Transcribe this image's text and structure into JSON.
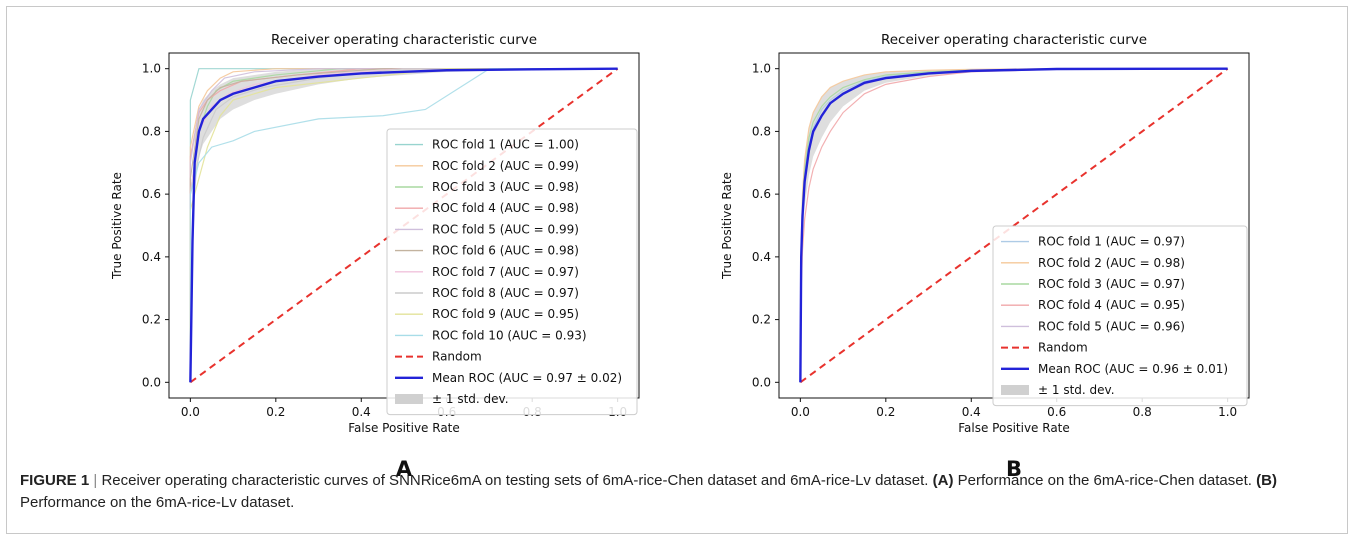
{
  "panels": [
    {
      "letter": "A"
    },
    {
      "letter": "B"
    }
  ],
  "caption": {
    "figure_label": "FIGURE 1",
    "separator": "|",
    "text1": "Receiver operating characteristic curves of SNNRice6mA on testing sets of 6mA-rice-Chen dataset and 6mA-rice-Lv dataset.",
    "label_a": "(A)",
    "text2": "Performance on the 6mA-rice-Chen dataset.",
    "label_b": "(B)",
    "text3": "Performance on the 6mA-rice-Lv dataset."
  },
  "chart_data": [
    {
      "type": "line",
      "title": "Receiver operating characteristic curve",
      "xlabel": "False Positive Rate",
      "ylabel": "True Positive Rate",
      "xlim": [
        -0.05,
        1.05
      ],
      "ylim": [
        -0.05,
        1.05
      ],
      "xticks": [
        "0.0",
        "0.2",
        "0.4",
        "0.6",
        "0.8",
        "1.0"
      ],
      "yticks": [
        "0.0",
        "0.2",
        "0.4",
        "0.6",
        "0.8",
        "1.0"
      ],
      "grid": false,
      "legend_position": "lower-right",
      "series": [
        {
          "name": "ROC fold 1 (AUC = 1.00)",
          "color": "#98d4cf",
          "x": [
            0,
            0,
            0.02,
            1
          ],
          "y": [
            0,
            0.9,
            1.0,
            1.0
          ]
        },
        {
          "name": "ROC fold 2 (AUC = 0.99)",
          "color": "#f5c89a",
          "x": [
            0,
            0,
            0.02,
            0.04,
            0.07,
            0.1,
            0.2,
            1
          ],
          "y": [
            0,
            0.75,
            0.88,
            0.93,
            0.97,
            0.99,
            1.0,
            1.0
          ]
        },
        {
          "name": "ROC fold 3 (AUC = 0.98)",
          "color": "#a9d9a0",
          "x": [
            0,
            0,
            0.02,
            0.04,
            0.06,
            0.1,
            0.2,
            0.35,
            1
          ],
          "y": [
            0,
            0.6,
            0.8,
            0.88,
            0.93,
            0.96,
            0.98,
            1.0,
            1.0
          ]
        },
        {
          "name": "ROC fold 4 (AUC = 0.98)",
          "color": "#f1a7aa",
          "x": [
            0,
            0,
            0.02,
            0.04,
            0.07,
            0.12,
            0.25,
            0.4,
            1
          ],
          "y": [
            0,
            0.72,
            0.86,
            0.9,
            0.93,
            0.96,
            0.98,
            1.0,
            1.0
          ]
        },
        {
          "name": "ROC fold 5 (AUC = 0.99)",
          "color": "#cfbfdc",
          "x": [
            0,
            0,
            0.02,
            0.05,
            0.08,
            0.15,
            0.3,
            1
          ],
          "y": [
            0,
            0.7,
            0.87,
            0.93,
            0.97,
            0.99,
            1.0,
            1.0
          ]
        },
        {
          "name": "ROC fold 6 (AUC = 0.98)",
          "color": "#c3b39f",
          "x": [
            0,
            0,
            0.02,
            0.04,
            0.07,
            0.12,
            0.25,
            0.45,
            1
          ],
          "y": [
            0,
            0.65,
            0.84,
            0.9,
            0.94,
            0.96,
            0.98,
            1.0,
            1.0
          ]
        },
        {
          "name": "ROC fold 7 (AUC = 0.97)",
          "color": "#f0c3dc",
          "x": [
            0,
            0,
            0.02,
            0.05,
            0.09,
            0.15,
            0.3,
            0.5,
            1
          ],
          "y": [
            0,
            0.6,
            0.8,
            0.88,
            0.92,
            0.95,
            0.98,
            1.0,
            1.0
          ]
        },
        {
          "name": "ROC fold 8 (AUC = 0.97)",
          "color": "#cccccc",
          "x": [
            0,
            0,
            0.03,
            0.06,
            0.1,
            0.17,
            0.3,
            0.5,
            1
          ],
          "y": [
            0,
            0.6,
            0.78,
            0.87,
            0.91,
            0.94,
            0.97,
            1.0,
            1.0
          ]
        },
        {
          "name": "ROC fold 9 (AUC = 0.95)",
          "color": "#e3e39a",
          "x": [
            0,
            0,
            0.02,
            0.04,
            0.07,
            0.1,
            0.2,
            0.4,
            0.6,
            1
          ],
          "y": [
            0,
            0.55,
            0.65,
            0.75,
            0.85,
            0.9,
            0.94,
            0.97,
            1.0,
            1.0
          ]
        },
        {
          "name": "ROC fold 10 (AUC = 0.93)",
          "color": "#a8dde8",
          "x": [
            0,
            0,
            0.02,
            0.05,
            0.1,
            0.15,
            0.3,
            0.45,
            0.55,
            0.7,
            1
          ],
          "y": [
            0,
            0.6,
            0.7,
            0.75,
            0.77,
            0.8,
            0.84,
            0.85,
            0.87,
            1.0,
            1.0
          ]
        }
      ],
      "random": {
        "name": "Random",
        "color": "#e8322d",
        "x": [
          0,
          1
        ],
        "y": [
          0,
          1
        ]
      },
      "mean": {
        "name": "Mean ROC (AUC = 0.97 ± 0.02)",
        "color": "#2323d8",
        "x": [
          0,
          0.005,
          0.01,
          0.02,
          0.03,
          0.05,
          0.07,
          0.1,
          0.15,
          0.2,
          0.3,
          0.4,
          0.5,
          0.6,
          0.8,
          1.0
        ],
        "y": [
          0,
          0.45,
          0.7,
          0.8,
          0.84,
          0.87,
          0.9,
          0.92,
          0.94,
          0.96,
          0.975,
          0.985,
          0.99,
          0.995,
          0.998,
          1.0
        ]
      },
      "std_band": {
        "name": "± 1 std. dev.",
        "color": "#d0d0d0",
        "x": [
          0,
          0.01,
          0.02,
          0.03,
          0.05,
          0.07,
          0.1,
          0.15,
          0.2,
          0.3,
          0.4,
          0.6,
          1.0
        ],
        "upper": [
          0,
          0.78,
          0.87,
          0.9,
          0.93,
          0.95,
          0.97,
          0.98,
          0.99,
          1.0,
          1.0,
          1.0,
          1.0
        ],
        "lower": [
          0,
          0.6,
          0.72,
          0.76,
          0.8,
          0.84,
          0.87,
          0.9,
          0.92,
          0.95,
          0.97,
          0.99,
          1.0
        ]
      }
    },
    {
      "type": "line",
      "title": "Receiver operating characteristic curve",
      "xlabel": "False Positive Rate",
      "ylabel": "True Positive Rate",
      "xlim": [
        -0.05,
        1.05
      ],
      "ylim": [
        -0.05,
        1.05
      ],
      "xticks": [
        "0.0",
        "0.2",
        "0.4",
        "0.6",
        "0.8",
        "1.0"
      ],
      "yticks": [
        "0.0",
        "0.2",
        "0.4",
        "0.6",
        "0.8",
        "1.0"
      ],
      "grid": false,
      "legend_position": "lower-right",
      "series": [
        {
          "name": "ROC fold 1 (AUC = 0.97)",
          "color": "#aecbe6",
          "x": [
            0,
            0.002,
            0.005,
            0.01,
            0.02,
            0.03,
            0.05,
            0.07,
            0.1,
            0.15,
            0.2,
            0.3,
            0.4,
            0.6,
            1.0
          ],
          "y": [
            0,
            0.4,
            0.55,
            0.66,
            0.76,
            0.81,
            0.87,
            0.9,
            0.93,
            0.96,
            0.975,
            0.99,
            0.995,
            0.999,
            1.0
          ]
        },
        {
          "name": "ROC fold 2 (AUC = 0.98)",
          "color": "#f5c89a",
          "x": [
            0,
            0.002,
            0.005,
            0.01,
            0.02,
            0.03,
            0.05,
            0.07,
            0.1,
            0.15,
            0.2,
            0.3,
            0.4,
            0.6,
            1.0
          ],
          "y": [
            0,
            0.45,
            0.6,
            0.71,
            0.81,
            0.86,
            0.91,
            0.94,
            0.96,
            0.98,
            0.99,
            0.995,
            0.998,
            1.0,
            1.0
          ]
        },
        {
          "name": "ROC fold 3 (AUC = 0.97)",
          "color": "#a9d9a0",
          "x": [
            0,
            0.002,
            0.005,
            0.01,
            0.02,
            0.03,
            0.05,
            0.07,
            0.1,
            0.15,
            0.2,
            0.3,
            0.4,
            0.6,
            1.0
          ],
          "y": [
            0,
            0.42,
            0.57,
            0.68,
            0.78,
            0.83,
            0.88,
            0.91,
            0.94,
            0.965,
            0.98,
            0.99,
            0.995,
            0.999,
            1.0
          ]
        },
        {
          "name": "ROC fold 4 (AUC = 0.95)",
          "color": "#f1a7aa",
          "x": [
            0,
            0.002,
            0.005,
            0.01,
            0.02,
            0.03,
            0.05,
            0.07,
            0.1,
            0.15,
            0.2,
            0.3,
            0.4,
            0.6,
            1.0
          ],
          "y": [
            0,
            0.3,
            0.42,
            0.52,
            0.62,
            0.68,
            0.75,
            0.8,
            0.86,
            0.92,
            0.95,
            0.975,
            0.99,
            0.998,
            1.0
          ]
        },
        {
          "name": "ROC fold 5 (AUC = 0.96)",
          "color": "#cfbfdc",
          "x": [
            0,
            0.002,
            0.005,
            0.01,
            0.02,
            0.03,
            0.05,
            0.07,
            0.1,
            0.15,
            0.2,
            0.3,
            0.4,
            0.6,
            1.0
          ],
          "y": [
            0,
            0.38,
            0.52,
            0.63,
            0.73,
            0.79,
            0.85,
            0.89,
            0.92,
            0.95,
            0.97,
            0.985,
            0.993,
            0.999,
            1.0
          ]
        }
      ],
      "random": {
        "name": "Random",
        "color": "#e8322d",
        "x": [
          0,
          1
        ],
        "y": [
          0,
          1
        ]
      },
      "mean": {
        "name": "Mean ROC (AUC = 0.96 ± 0.01)",
        "color": "#2323d8",
        "x": [
          0,
          0.002,
          0.005,
          0.01,
          0.02,
          0.03,
          0.05,
          0.07,
          0.1,
          0.15,
          0.2,
          0.3,
          0.4,
          0.6,
          1.0
        ],
        "y": [
          0,
          0.4,
          0.53,
          0.64,
          0.74,
          0.8,
          0.85,
          0.89,
          0.92,
          0.955,
          0.97,
          0.985,
          0.993,
          0.999,
          1.0
        ]
      },
      "std_band": {
        "name": "± 1 std. dev.",
        "color": "#d0d0d0",
        "x": [
          0,
          0.002,
          0.005,
          0.01,
          0.02,
          0.03,
          0.05,
          0.07,
          0.1,
          0.15,
          0.2,
          0.3,
          0.4,
          0.6,
          1.0
        ],
        "upper": [
          0,
          0.46,
          0.6,
          0.71,
          0.81,
          0.86,
          0.91,
          0.94,
          0.96,
          0.98,
          0.99,
          0.995,
          0.998,
          1.0,
          1.0
        ],
        "lower": [
          0,
          0.33,
          0.46,
          0.56,
          0.66,
          0.72,
          0.78,
          0.83,
          0.88,
          0.93,
          0.955,
          0.978,
          0.99,
          0.998,
          1.0
        ]
      }
    }
  ]
}
